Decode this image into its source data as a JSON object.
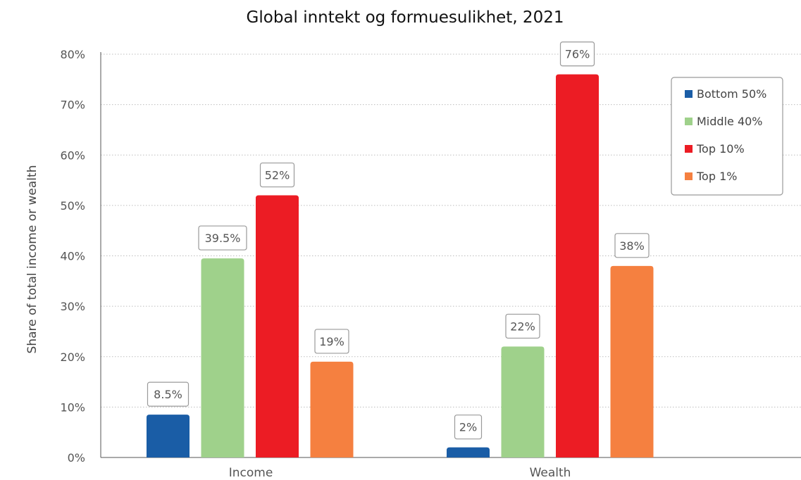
{
  "chart_data": {
    "type": "bar",
    "title": "Global inntekt og formuesulikhet, 2021",
    "ylabel": "Share of total income or wealth",
    "xlabel": "",
    "categories": [
      "Income",
      "Wealth"
    ],
    "ylim": [
      0,
      80
    ],
    "yticks": [
      "0%",
      "10%",
      "20%",
      "30%",
      "40%",
      "50%",
      "60%",
      "70%",
      "80%"
    ],
    "grid": true,
    "legend_position": "top-right",
    "series": [
      {
        "name": "Bottom 50%",
        "color": "#1a5da6",
        "values": [
          8.5,
          2
        ],
        "labels": [
          "8.5%",
          "2%"
        ]
      },
      {
        "name": "Middle 40%",
        "color": "#9fd18b",
        "values": [
          39.5,
          22
        ],
        "labels": [
          "39.5%",
          "22%"
        ]
      },
      {
        "name": "Top 10%",
        "color": "#ec1c24",
        "values": [
          52,
          76
        ],
        "labels": [
          "52%",
          "76%"
        ]
      },
      {
        "name": "Top 1%",
        "color": "#f58040",
        "values": [
          19,
          38
        ],
        "labels": [
          "19%",
          "38%"
        ]
      }
    ]
  }
}
